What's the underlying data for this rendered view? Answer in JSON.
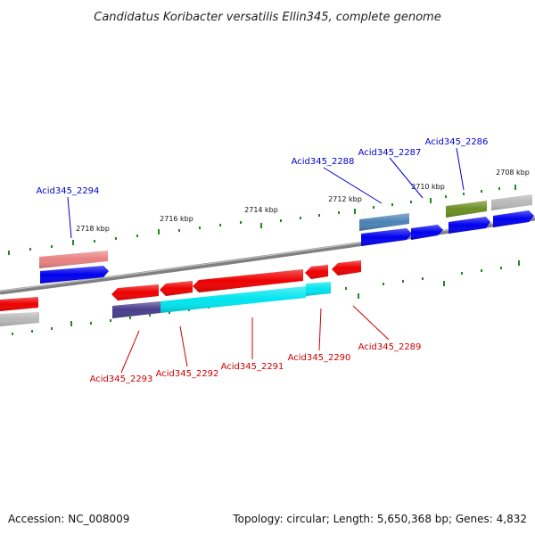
{
  "title": "Candidatus Koribacter versatilis Ellin345, complete genome",
  "ticks": [
    "2718 kbp",
    "2716 kbp",
    "2714 kbp",
    "2712 kbp",
    "2710 kbp",
    "2708 kbp"
  ],
  "genes_top": [
    "Acid345_2294",
    "Acid345_2288",
    "Acid345_2287",
    "Acid345_2286"
  ],
  "genes_bottom": [
    "Acid345_2293",
    "Acid345_2292",
    "Acid345_2291",
    "Acid345_2290",
    "Acid345_2289"
  ],
  "footer": {
    "accession": "Accession: NC_008009",
    "topology": "Topology: circular; Length: 5,650,368 bp; Genes: 4,832"
  },
  "colors": {
    "plus_label": "#0000cc",
    "minus_label": "#cc0000",
    "backbone": "#888888",
    "tick": "#228822",
    "gene_blue": "#0000ee",
    "gene_red": "#ee0000",
    "gene_cyan": "#00e5ee",
    "gene_gray": "#b8b8b8",
    "gene_pink": "#e88080",
    "gene_steelblue": "#4a82b4",
    "gene_olive": "#6b8e23",
    "gene_purple": "#483d8b"
  }
}
